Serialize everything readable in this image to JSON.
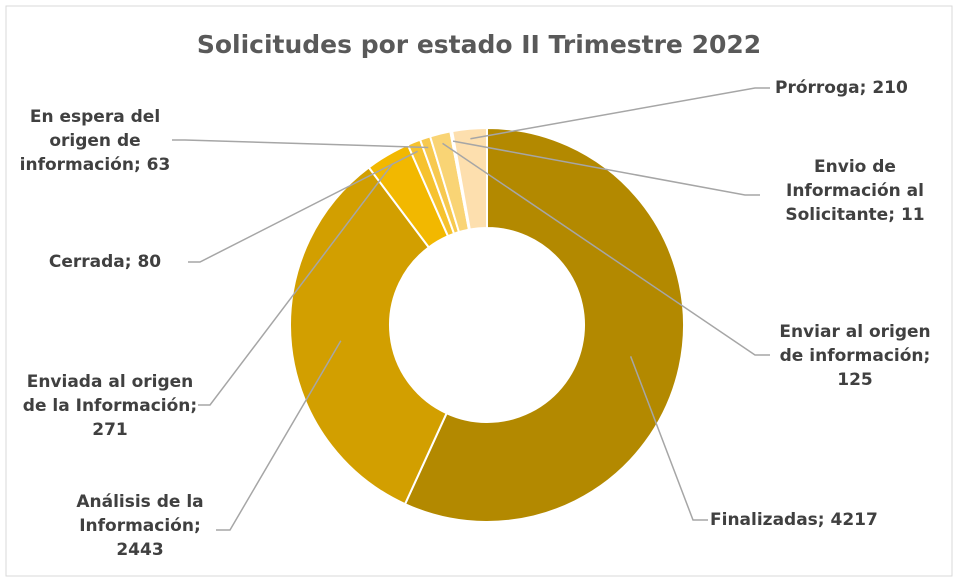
{
  "chart_data": {
    "type": "donut",
    "title": "Solicitudes por estado II Trimestre 2022",
    "categories": [
      "Finalizadas",
      "Análisis de la Información",
      "Enviada al origen de la Información",
      "Cerrada",
      "En espera del origen de información",
      "Enviar al origen de información",
      "Envio de Información al Solicitante",
      "Prórroga"
    ],
    "values": [
      4217,
      2443,
      271,
      80,
      63,
      125,
      11,
      210
    ],
    "colors": [
      "#b38900",
      "#d29f00",
      "#f2b800",
      "#f6c22e",
      "#f7c94f",
      "#f9d475",
      "#fbdc93",
      "#fddfae"
    ],
    "label_separator": "; "
  }
}
